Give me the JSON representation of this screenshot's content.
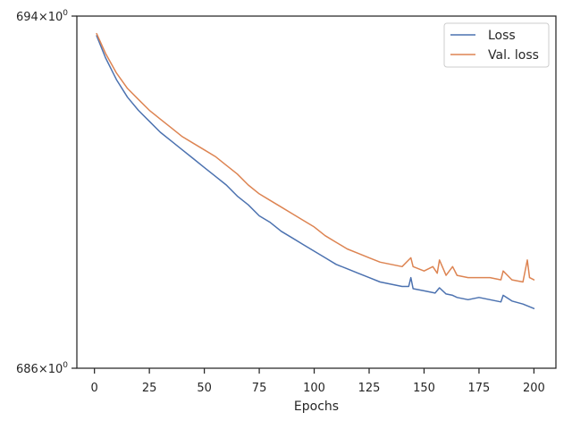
{
  "chart_data": {
    "type": "line",
    "xlabel": "Epochs",
    "ylabel": "",
    "xlim": [
      -8,
      210
    ],
    "ylim": [
      686,
      694
    ],
    "x_ticks": [
      0,
      25,
      50,
      75,
      100,
      125,
      150,
      175,
      200
    ],
    "y_tick_values": [
      686,
      694
    ],
    "y_tick_labels": [
      {
        "base": "686",
        "exp": "0"
      },
      {
        "base": "694",
        "exp": "0"
      }
    ],
    "y_scale": "log",
    "grid": false,
    "legend_position": "top-right",
    "series": [
      {
        "name": "Loss",
        "color": "#4c72b0",
        "points": [
          [
            1,
            693.55
          ],
          [
            5,
            693.05
          ],
          [
            10,
            692.55
          ],
          [
            15,
            692.15
          ],
          [
            20,
            691.85
          ],
          [
            25,
            691.6
          ],
          [
            30,
            691.35
          ],
          [
            35,
            691.15
          ],
          [
            40,
            690.95
          ],
          [
            45,
            690.75
          ],
          [
            50,
            690.55
          ],
          [
            55,
            690.35
          ],
          [
            60,
            690.15
          ],
          [
            65,
            689.9
          ],
          [
            70,
            689.7
          ],
          [
            75,
            689.45
          ],
          [
            80,
            689.3
          ],
          [
            85,
            689.1
          ],
          [
            90,
            688.95
          ],
          [
            95,
            688.8
          ],
          [
            100,
            688.65
          ],
          [
            105,
            688.5
          ],
          [
            110,
            688.35
          ],
          [
            115,
            688.25
          ],
          [
            120,
            688.15
          ],
          [
            125,
            688.05
          ],
          [
            130,
            687.95
          ],
          [
            135,
            687.9
          ],
          [
            140,
            687.85
          ],
          [
            143,
            687.85
          ],
          [
            144,
            688.05
          ],
          [
            145,
            687.8
          ],
          [
            150,
            687.75
          ],
          [
            155,
            687.7
          ],
          [
            157,
            687.82
          ],
          [
            160,
            687.68
          ],
          [
            163,
            687.65
          ],
          [
            165,
            687.6
          ],
          [
            170,
            687.55
          ],
          [
            175,
            687.6
          ],
          [
            180,
            687.55
          ],
          [
            185,
            687.5
          ],
          [
            186,
            687.65
          ],
          [
            190,
            687.52
          ],
          [
            195,
            687.45
          ],
          [
            200,
            687.35
          ]
        ]
      },
      {
        "name": "Val. loss",
        "color": "#dd8452",
        "points": [
          [
            1,
            693.6
          ],
          [
            5,
            693.15
          ],
          [
            10,
            692.7
          ],
          [
            15,
            692.35
          ],
          [
            20,
            692.1
          ],
          [
            25,
            691.85
          ],
          [
            30,
            691.65
          ],
          [
            35,
            691.45
          ],
          [
            40,
            691.25
          ],
          [
            45,
            691.1
          ],
          [
            50,
            690.95
          ],
          [
            55,
            690.8
          ],
          [
            60,
            690.6
          ],
          [
            65,
            690.4
          ],
          [
            70,
            690.15
          ],
          [
            75,
            689.95
          ],
          [
            80,
            689.8
          ],
          [
            85,
            689.65
          ],
          [
            90,
            689.5
          ],
          [
            95,
            689.35
          ],
          [
            100,
            689.2
          ],
          [
            105,
            689.0
          ],
          [
            110,
            688.85
          ],
          [
            115,
            688.7
          ],
          [
            120,
            688.6
          ],
          [
            125,
            688.5
          ],
          [
            130,
            688.4
          ],
          [
            135,
            688.35
          ],
          [
            140,
            688.3
          ],
          [
            144,
            688.5
          ],
          [
            145,
            688.3
          ],
          [
            150,
            688.2
          ],
          [
            154,
            688.3
          ],
          [
            156,
            688.15
          ],
          [
            157,
            688.45
          ],
          [
            160,
            688.1
          ],
          [
            163,
            688.3
          ],
          [
            165,
            688.1
          ],
          [
            170,
            688.05
          ],
          [
            175,
            688.05
          ],
          [
            180,
            688.05
          ],
          [
            185,
            688.0
          ],
          [
            186,
            688.2
          ],
          [
            190,
            688.0
          ],
          [
            195,
            687.95
          ],
          [
            197,
            688.45
          ],
          [
            198,
            688.05
          ],
          [
            200,
            688.0
          ]
        ]
      }
    ]
  }
}
